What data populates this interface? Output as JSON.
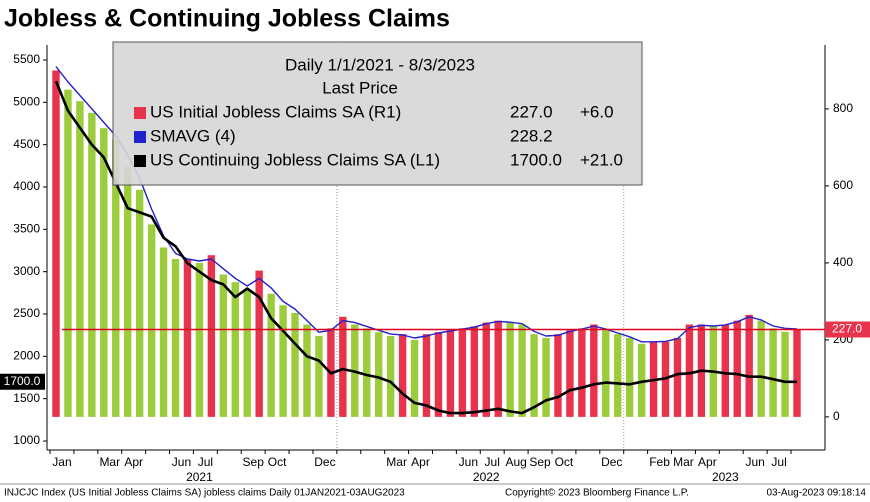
{
  "chart_data": {
    "type": "combo",
    "title": "Jobless & Continuing Jobless Claims",
    "legend": {
      "header": "Daily 1/1/2021 - 8/3/2023",
      "subheader": "Last Price"
    },
    "categories": [
      "Jan",
      null,
      null,
      null,
      "Mar",
      null,
      "Apr",
      null,
      null,
      null,
      "Jun",
      null,
      "Jul",
      null,
      null,
      null,
      "Sep",
      null,
      "Oct",
      null,
      null,
      null,
      "Dec",
      null,
      null,
      null,
      null,
      null,
      "Mar",
      null,
      "Apr",
      null,
      null,
      null,
      "Jun",
      null,
      "Jul",
      null,
      "Aug",
      null,
      "Sep",
      null,
      "Oct",
      null,
      null,
      null,
      "Dec",
      null,
      null,
      null,
      "Feb",
      null,
      "Mar",
      null,
      "Apr",
      null,
      null,
      null,
      "Jun",
      null,
      "Jul",
      null,
      null
    ],
    "year_labels": [
      "2021",
      "2022",
      "2023"
    ],
    "ylim": [
      894,
      5677
    ],
    "yticks": [
      1000,
      1500,
      2000,
      2500,
      3000,
      3500,
      4000,
      4500,
      5000,
      5500
    ],
    "y2lim": [
      -86,
      966
    ],
    "y2ticks": [
      0,
      200,
      400,
      600,
      800
    ],
    "grid": false,
    "series": [
      {
        "name": "US Initial Jobless Claims SA  (R1)",
        "type": "bar",
        "axis": "y2",
        "color": "#e8334d",
        "down_color": "#9ccc3c",
        "last": "227.0",
        "change": "+6.0",
        "values": [
          900,
          850,
          820,
          790,
          750,
          720,
          650,
          590,
          500,
          440,
          410,
          410,
          400,
          420,
          370,
          350,
          330,
          380,
          320,
          290,
          270,
          240,
          210,
          230,
          260,
          240,
          230,
          220,
          210,
          215,
          200,
          215,
          220,
          225,
          230,
          235,
          245,
          250,
          245,
          240,
          215,
          205,
          215,
          225,
          230,
          240,
          225,
          215,
          205,
          190,
          195,
          195,
          205,
          240,
          240,
          235,
          240,
          250,
          265,
          250,
          230,
          221,
          227
        ]
      },
      {
        "name": "SMAVG (4)",
        "type": "line",
        "axis": "y2",
        "color": "#2222cc",
        "last": "228.2",
        "values": [
          910,
          870,
          835,
          800,
          765,
          730,
          680,
          620,
          540,
          470,
          425,
          410,
          405,
          410,
          385,
          360,
          340,
          360,
          335,
          300,
          280,
          250,
          220,
          225,
          250,
          245,
          235,
          225,
          215,
          213,
          205,
          210,
          218,
          223,
          228,
          233,
          242,
          248,
          246,
          242,
          222,
          210,
          212,
          222,
          228,
          236,
          228,
          218,
          208,
          195,
          195,
          196,
          203,
          232,
          238,
          236,
          239,
          247,
          260,
          252,
          236,
          230,
          228.2
        ]
      },
      {
        "name": "US Continuing Jobless Claims SA  (L1)",
        "type": "line",
        "axis": "y",
        "color": "#000000",
        "last": "1700.0",
        "change": "+21.0",
        "values": [
          5250,
          4900,
          4700,
          4500,
          4350,
          4050,
          3750,
          3700,
          3650,
          3400,
          3300,
          3100,
          3000,
          2900,
          2850,
          2700,
          2800,
          2700,
          2450,
          2300,
          2150,
          2000,
          1950,
          1800,
          1850,
          1820,
          1780,
          1750,
          1700,
          1560,
          1450,
          1420,
          1360,
          1330,
          1330,
          1340,
          1360,
          1380,
          1350,
          1330,
          1400,
          1480,
          1520,
          1600,
          1630,
          1670,
          1690,
          1680,
          1670,
          1700,
          1720,
          1740,
          1790,
          1800,
          1830,
          1820,
          1800,
          1790,
          1760,
          1760,
          1730,
          1700,
          1700
        ]
      }
    ],
    "footer": [
      "INJCJC Index (US Initial Jobless Claims SA) jobless claims  Daily 01JAN2021-03AUG2023",
      "Copyright© 2023 Bloomberg Finance L.P.",
      "03-Aug-2023 09:18:14"
    ]
  }
}
